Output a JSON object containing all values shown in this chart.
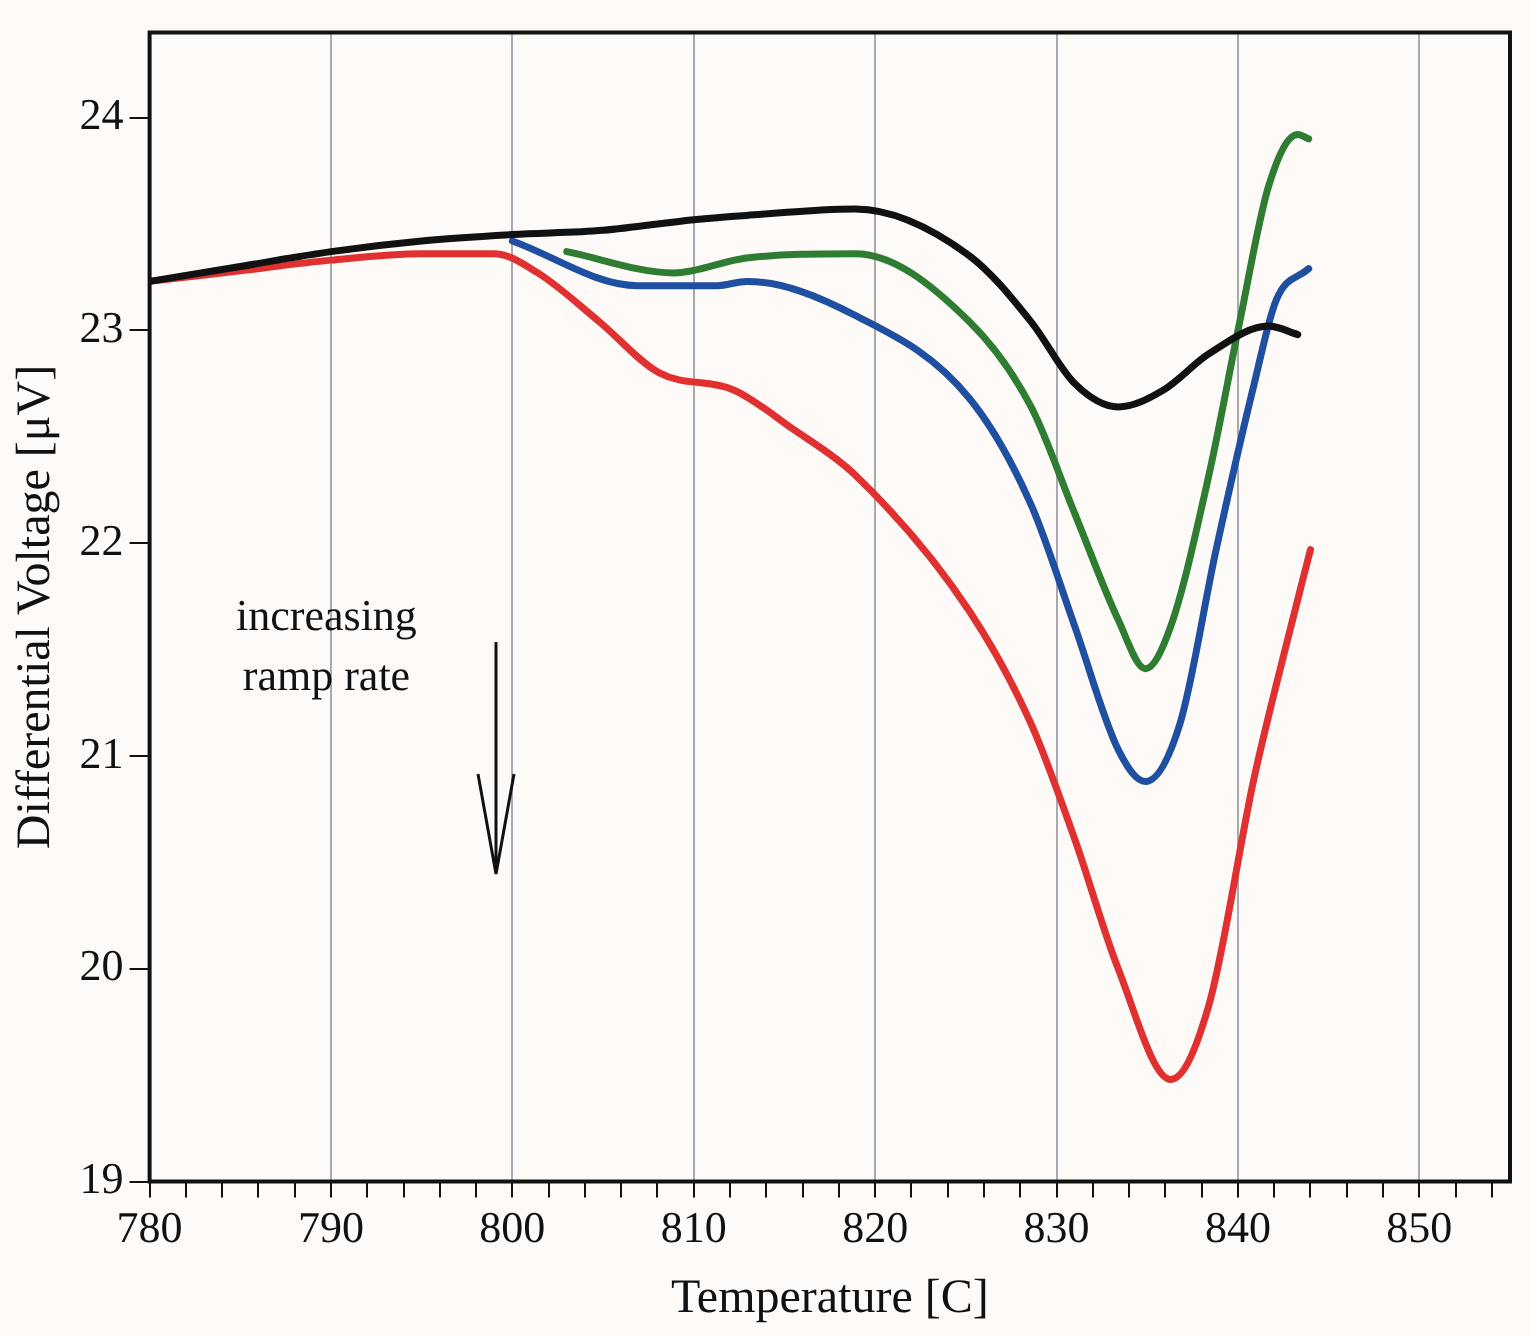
{
  "chart_data": {
    "type": "line",
    "xlabel": "Temperature [C]",
    "ylabel": "Differential Voltage [μV]",
    "xlim": [
      780,
      855
    ],
    "ylim": [
      19,
      24.4
    ],
    "xticks": [
      780,
      {
        "value": 782,
        "label": null
      },
      {
        "value": 784,
        "label": null
      },
      {
        "value": 786,
        "label": null
      },
      {
        "value": 788,
        "label": null
      },
      790,
      {
        "value": 792,
        "label": null
      },
      {
        "value": 794,
        "label": null
      },
      {
        "value": 796,
        "label": null
      },
      {
        "value": 798,
        "label": null
      },
      800,
      {
        "value": 802,
        "label": null
      },
      {
        "value": 804,
        "label": null
      },
      {
        "value": 806,
        "label": null
      },
      {
        "value": 808,
        "label": null
      },
      810,
      {
        "value": 812,
        "label": null
      },
      {
        "value": 814,
        "label": null
      },
      {
        "value": 816,
        "label": null
      },
      {
        "value": 818,
        "label": null
      },
      820,
      {
        "value": 822,
        "label": null
      },
      {
        "value": 824,
        "label": null
      },
      {
        "value": 826,
        "label": null
      },
      {
        "value": 828,
        "label": null
      },
      830,
      {
        "value": 832,
        "label": null
      },
      {
        "value": 834,
        "label": null
      },
      {
        "value": 836,
        "label": null
      },
      {
        "value": 838,
        "label": null
      },
      840,
      {
        "value": 842,
        "label": null
      },
      {
        "value": 844,
        "label": null
      },
      {
        "value": 846,
        "label": null
      },
      {
        "value": 848,
        "label": null
      },
      850,
      {
        "value": 852,
        "label": null
      },
      {
        "value": 854,
        "label": null
      }
    ],
    "yticks": [
      19,
      20,
      21,
      22,
      23,
      24
    ],
    "grid": "x",
    "legend": false,
    "marker": "none",
    "line_style": "solid",
    "annotations": [
      "increasing\nramp rate"
    ],
    "series": [
      {
        "color": "#111111",
        "x": [
          780,
          785,
          790,
          795,
          800,
          805,
          810,
          812.9,
          818.9,
          825.2,
          828.6,
          831,
          833.4,
          835.9,
          838.4,
          841.7,
          843.3
        ],
        "values": [
          23.23,
          23.3,
          23.37,
          23.42,
          23.45,
          23.47,
          23.52,
          23.54,
          23.57,
          23.35,
          23.04,
          22.75,
          22.64,
          22.72,
          22.89,
          23.02,
          22.98
        ]
      },
      {
        "color": "#2e7d32",
        "x": [
          803,
          808.9,
          812.9,
          818.9,
          825.2,
          828.6,
          831,
          833.4,
          834.9,
          836.3,
          838.4,
          840.1,
          841.7,
          843.3,
          843.9
        ],
        "values": [
          23.37,
          23.27,
          23.34,
          23.36,
          23.04,
          22.64,
          22.14,
          21.64,
          21.41,
          21.61,
          22.32,
          23.04,
          23.68,
          23.92,
          23.9
        ]
      },
      {
        "color": "#1f4fa0",
        "x": [
          800,
          806.9,
          811.3,
          812.9,
          818.9,
          825.2,
          828.6,
          831,
          833.4,
          834.9,
          836.8,
          838.8,
          840.9,
          842.1,
          843.9
        ],
        "values": [
          23.42,
          23.21,
          23.21,
          23.23,
          23.07,
          22.68,
          22.18,
          21.61,
          21.03,
          20.88,
          21.15,
          21.97,
          22.75,
          23.14,
          23.29
        ]
      },
      {
        "color": "#e03030",
        "x": [
          780,
          785,
          790,
          795,
          799,
          801.4,
          804.8,
          808.1,
          812.2,
          815.4,
          818.9,
          825.2,
          828.6,
          831,
          833.4,
          836.3,
          838.4,
          840.9,
          842.6,
          844
        ],
        "values": [
          23.23,
          23.28,
          23.33,
          23.36,
          23.36,
          23.27,
          23.04,
          22.8,
          22.72,
          22.54,
          22.32,
          21.68,
          21.15,
          20.61,
          20.0,
          19.48,
          19.83,
          20.9,
          21.5,
          21.97
        ]
      }
    ]
  }
}
